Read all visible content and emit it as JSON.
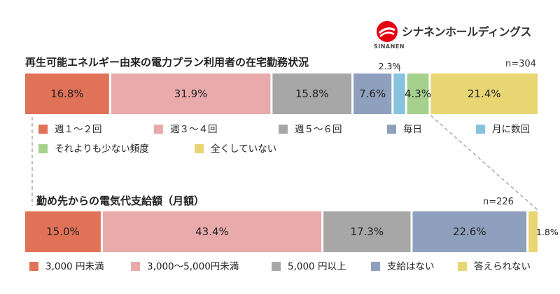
{
  "brand": {
    "name": "シナネンホールディングス",
    "sub": "SINANEN",
    "colors": {
      "red": "#e60012"
    }
  },
  "chart_data": [
    {
      "type": "stacked-bar-100",
      "title": "再生可能エネルギー由来の電力プラン利用者の在宅勤務状況",
      "n_label": "n=304",
      "categories": [
        "週１～２回",
        "週３～４回",
        "週５～６回",
        "毎日",
        "月に数回",
        "それよりも少ない頻度",
        "全くしていない"
      ],
      "values": [
        16.8,
        31.9,
        15.8,
        7.6,
        2.3,
        4.3,
        21.4
      ],
      "value_labels": [
        "16.8%",
        "31.9%",
        "15.8%",
        "7.6%",
        "2.3%",
        "4.3%",
        "21.4%"
      ],
      "colors": [
        "#e07257",
        "#e9aaab",
        "#a7a7a7",
        "#8fa0be",
        "#87c2df",
        "#a5d18d",
        "#e8d673"
      ]
    },
    {
      "type": "stacked-bar-100",
      "title": "勤め先からの電気代支給額（月額）",
      "n_label": "n=226",
      "categories": [
        "3,000 円未満",
        "3,000～5,000円未満",
        "5,000 円以上",
        "支給はない",
        "答えられない"
      ],
      "values": [
        15.0,
        43.4,
        17.3,
        22.6,
        1.8
      ],
      "value_labels": [
        "15.0%",
        "43.4%",
        "17.3%",
        "22.6%",
        "1.8%"
      ],
      "colors": [
        "#e07257",
        "#e9aaab",
        "#a7a7a7",
        "#8fa0be",
        "#e8d673"
      ]
    }
  ]
}
